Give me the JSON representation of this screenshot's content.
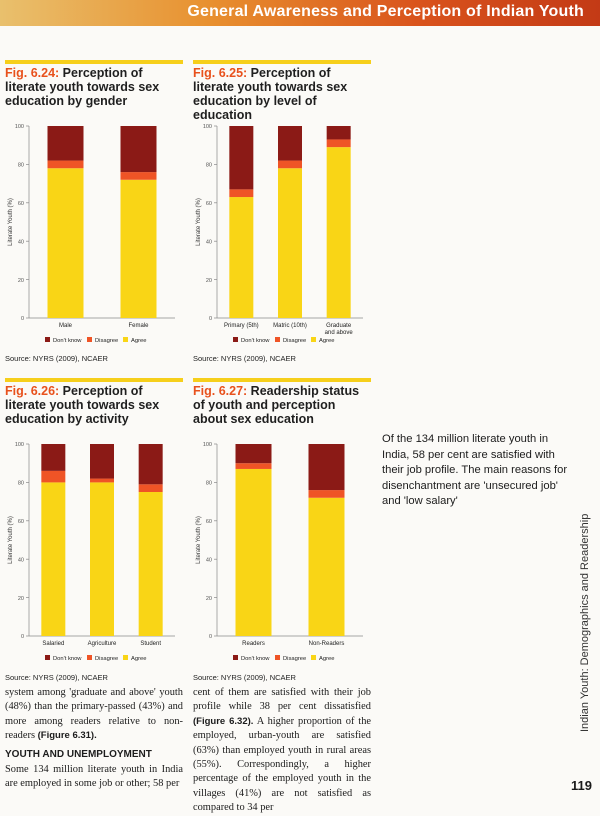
{
  "header": {
    "title": "General Awareness and Perception of Indian Youth"
  },
  "sidebar": {
    "label": "Indian Youth: Demographics and Readership",
    "page_number": "119",
    "highlight": "Of the 134 million literate youth in India, 58 per cent are satisfied with their job profile. The main reasons for disenchantment are 'unsecured job' and 'low salary'"
  },
  "colors": {
    "dont_know": "#8b1a16",
    "disagree": "#ef5426",
    "agree": "#f9d516",
    "rule": "#f6cf1b",
    "fig_number": "#e8511c"
  },
  "figures": [
    {
      "number": "Fig. 6.24:",
      "title": "Perception of literate youth towards sex education by gender",
      "source": "Source: NYRS (2009), NCAER"
    },
    {
      "number": "Fig. 6.25:",
      "title": "Perception of literate youth towards sex education by level of education",
      "source": "Source: NYRS (2009), NCAER"
    },
    {
      "number": "Fig. 6.26:",
      "title": "Perception of literate youth towards sex education by activity",
      "source": "Source: NYRS (2009), NCAER"
    },
    {
      "number": "Fig. 6.27:",
      "title": "Readership status of youth and perception about sex education",
      "source": "Source: NYRS (2009), NCAER"
    }
  ],
  "chart_data": [
    {
      "type": "bar",
      "stacked": true,
      "ylabel": "Literate Youth (%)",
      "ylim": [
        0,
        100
      ],
      "yticks": [
        0,
        20,
        40,
        60,
        80,
        100
      ],
      "categories": [
        [
          "Male"
        ],
        [
          "Female"
        ]
      ],
      "series": [
        {
          "name": "Agree",
          "values": [
            78,
            72
          ]
        },
        {
          "name": "Disagree",
          "values": [
            4,
            4
          ]
        },
        {
          "name": "Don't know",
          "values": [
            18,
            24
          ]
        }
      ]
    },
    {
      "type": "bar",
      "stacked": true,
      "ylabel": "Literate Youth (%)",
      "ylim": [
        0,
        100
      ],
      "yticks": [
        0,
        20,
        40,
        60,
        80,
        100
      ],
      "categories": [
        [
          "Primary (5th)"
        ],
        [
          "Matric (10th)"
        ],
        [
          "Graduate",
          "and above"
        ]
      ],
      "series": [
        {
          "name": "Agree",
          "values": [
            63,
            78,
            89
          ]
        },
        {
          "name": "Disagree",
          "values": [
            4,
            4,
            4
          ]
        },
        {
          "name": "Don't know",
          "values": [
            33,
            18,
            7
          ]
        }
      ]
    },
    {
      "type": "bar",
      "stacked": true,
      "ylabel": "Literate Youth (%)",
      "ylim": [
        0,
        100
      ],
      "yticks": [
        0,
        20,
        40,
        60,
        80,
        100
      ],
      "categories": [
        [
          "Salaried"
        ],
        [
          "Agriculture"
        ],
        [
          "Student"
        ]
      ],
      "series": [
        {
          "name": "Agree",
          "values": [
            80,
            80,
            75
          ]
        },
        {
          "name": "Disagree",
          "values": [
            6,
            2,
            4
          ]
        },
        {
          "name": "Don't know",
          "values": [
            14,
            18,
            21
          ]
        }
      ]
    },
    {
      "type": "bar",
      "stacked": true,
      "ylabel": "Literate Youth (%)",
      "ylim": [
        0,
        100
      ],
      "yticks": [
        0,
        20,
        40,
        60,
        80,
        100
      ],
      "categories": [
        [
          "Readers"
        ],
        [
          "Non-Readers"
        ]
      ],
      "series": [
        {
          "name": "Agree",
          "values": [
            87,
            72
          ]
        },
        {
          "name": "Disagree",
          "values": [
            3,
            4
          ]
        },
        {
          "name": "Don't know",
          "values": [
            10,
            24
          ]
        }
      ]
    }
  ],
  "body": {
    "left_para1": "system among 'graduate and above' youth (48%) than the primary-passed (43%) and more among readers relative to non-readers",
    "left_ref1": "(Figure 6.31).",
    "left_subhead": "YOUTH AND UNEMPLOYMENT",
    "left_para2": "Some 134 million literate youth in India are employed in some job or other; 58 per",
    "right_para1": "cent of them are satisfied with their job profile while 38 per cent dissatisfied",
    "right_ref1": "(Figure 6.32).",
    "right_para2": "A higher proportion of the employed, urban-youth are satisfied (63%) than employed youth in rural areas (55%). Correspondingly, a higher percentage of the employed youth in the villages (41%) are not satisfied as compared to 34 per"
  }
}
